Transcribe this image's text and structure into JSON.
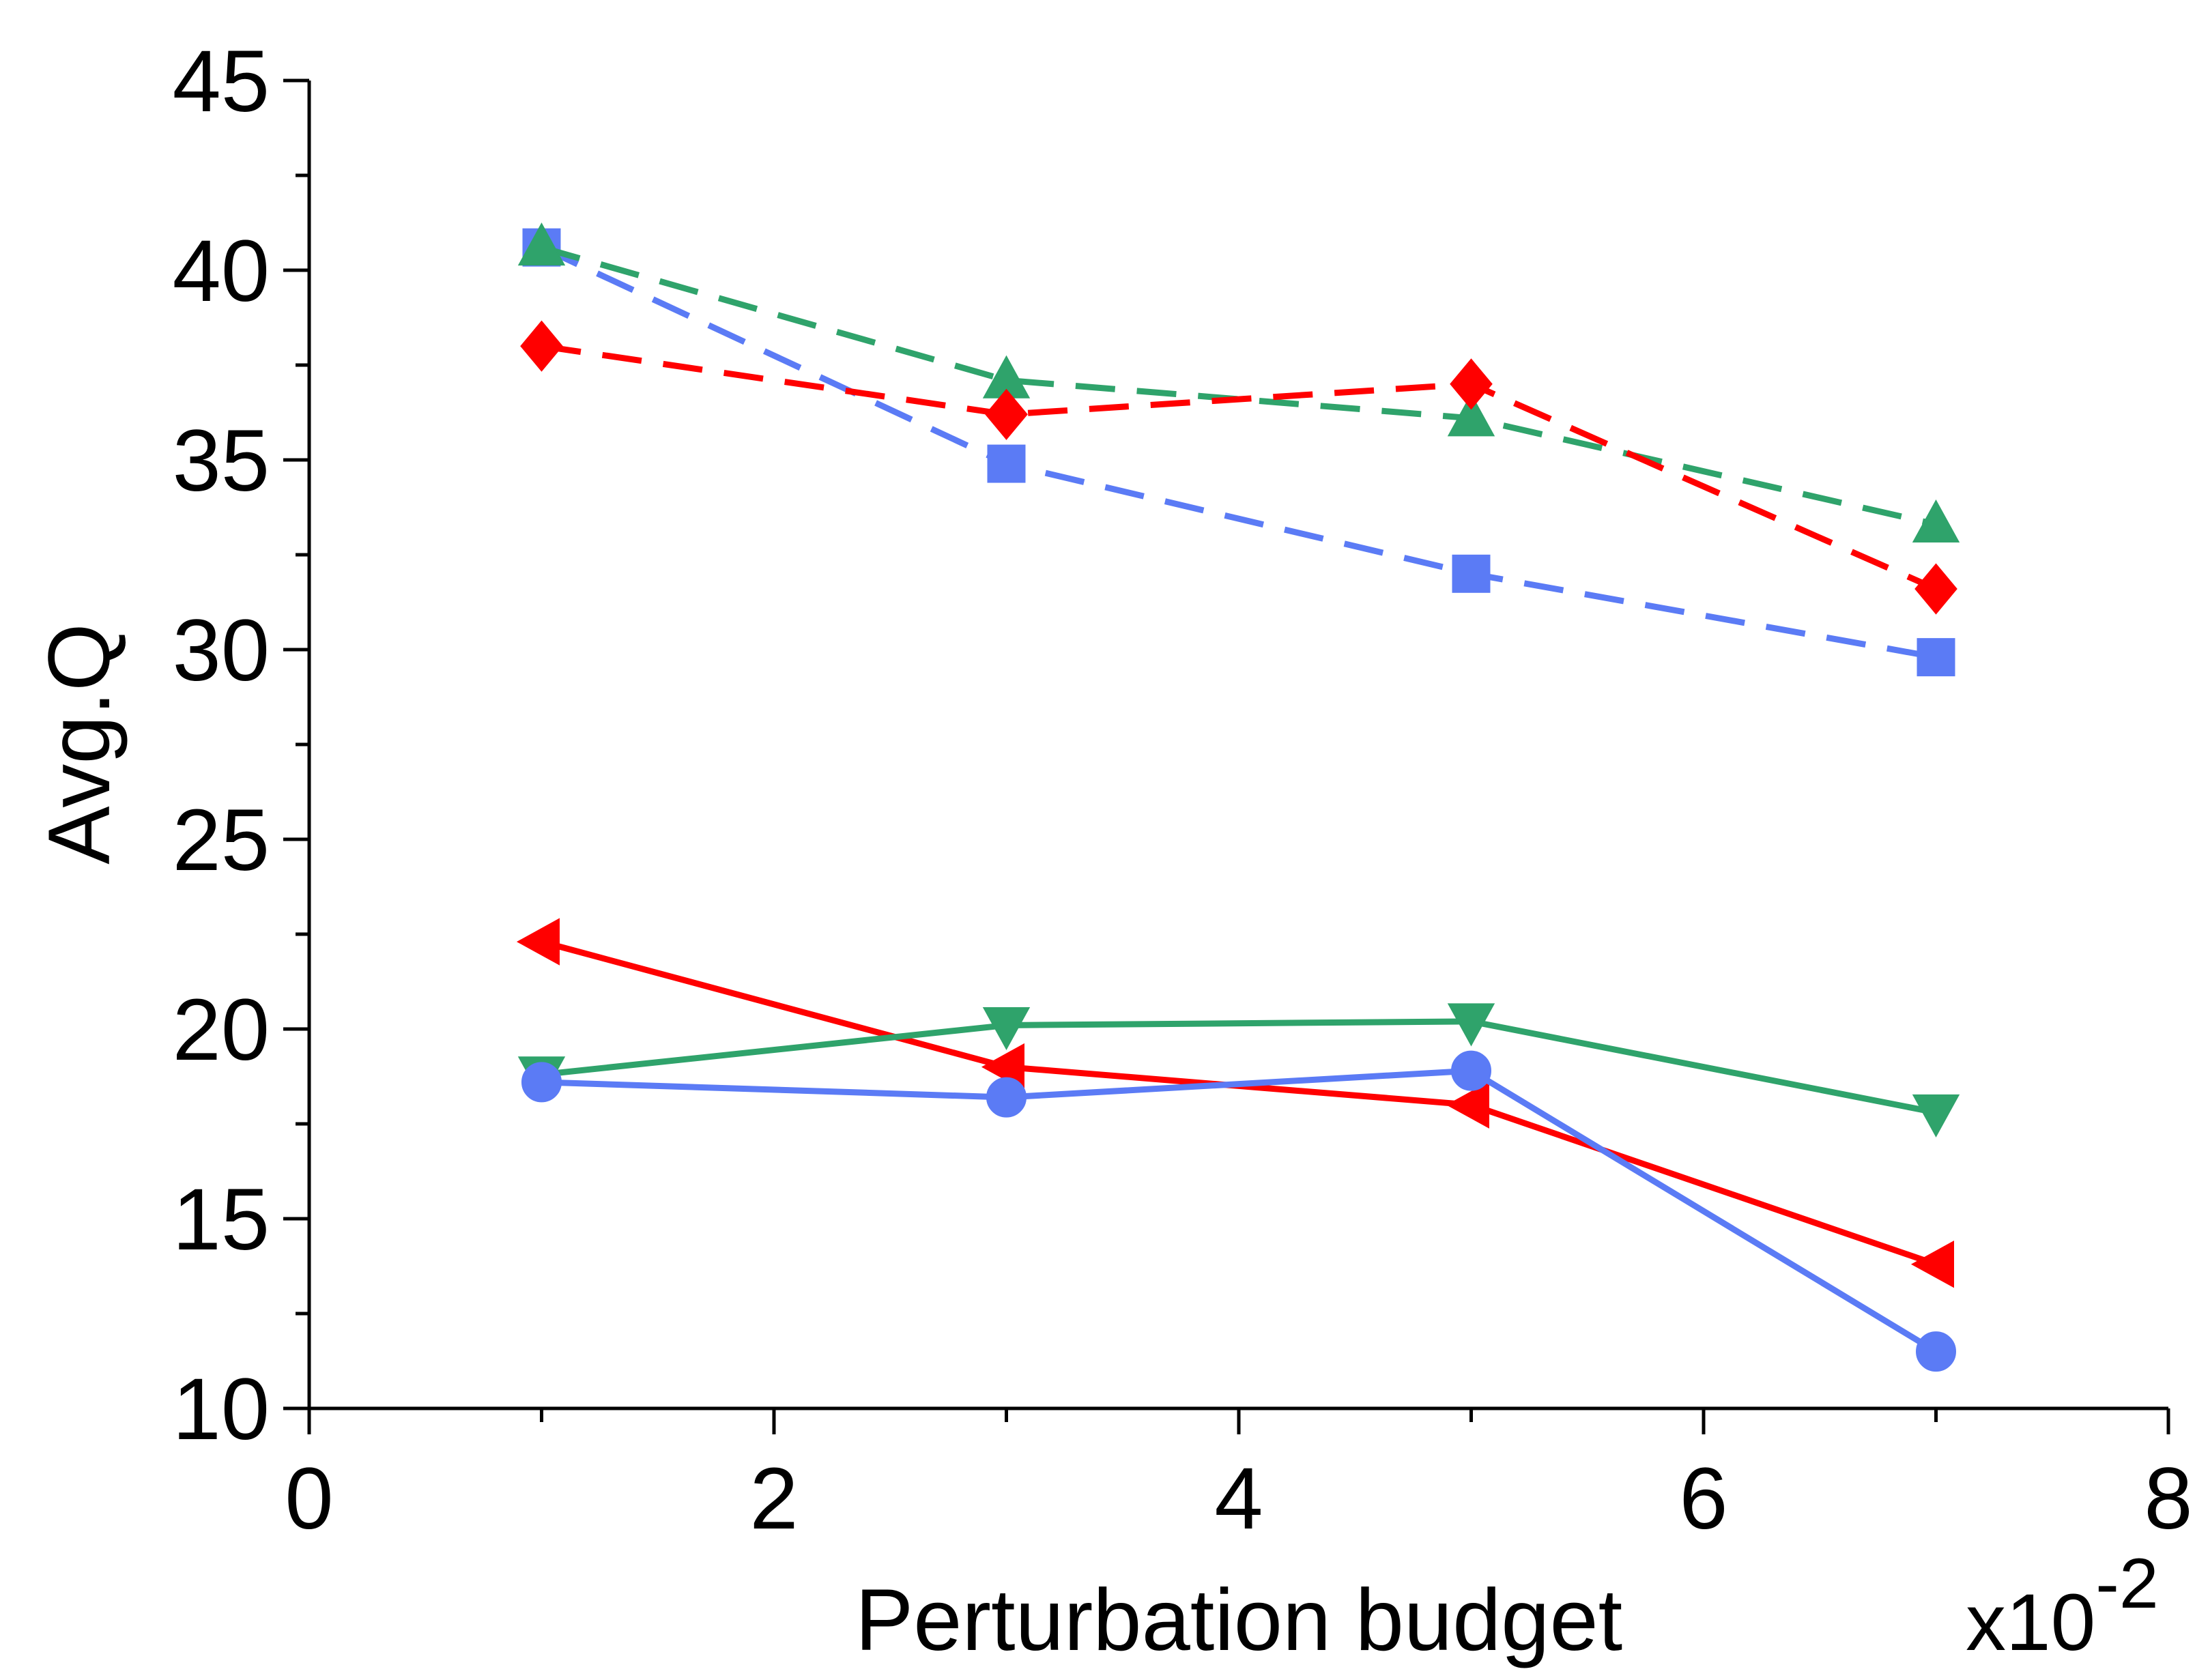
{
  "chart_data": {
    "type": "line",
    "title": "",
    "xlabel": "Perturbation budget",
    "ylabel": "Avg.Q",
    "x_multiplier": "x10",
    "x_multiplier_exp": "-2",
    "xlim": [
      0,
      8
    ],
    "ylim": [
      10,
      45
    ],
    "xticks": [
      0,
      2,
      4,
      6,
      8
    ],
    "yticks": [
      10,
      15,
      20,
      25,
      30,
      35,
      40,
      45
    ],
    "grid": false,
    "legend": "none",
    "series": [
      {
        "name": "blue-dashed-square",
        "color": "#5b7bf5",
        "line_style": "dashed",
        "marker": "square",
        "x": [
          1,
          3,
          5,
          7
        ],
        "values": [
          40.6,
          34.9,
          32.0,
          29.8
        ]
      },
      {
        "name": "green-dashed-triangle-up",
        "color": "#2fa36b",
        "line_style": "dashed",
        "marker": "triangle-up",
        "x": [
          1,
          3,
          5,
          7
        ],
        "values": [
          40.6,
          37.1,
          36.1,
          33.3
        ]
      },
      {
        "name": "red-dashed-diamond",
        "color": "#ff0000",
        "line_style": "dashed",
        "marker": "diamond",
        "x": [
          1,
          3,
          5,
          7
        ],
        "values": [
          38.0,
          36.2,
          37.0,
          31.6
        ]
      },
      {
        "name": "red-solid-triangle-left",
        "color": "#ff0000",
        "line_style": "solid",
        "marker": "triangle-left",
        "x": [
          1,
          3,
          5,
          7
        ],
        "values": [
          22.3,
          19.0,
          18.0,
          13.8
        ]
      },
      {
        "name": "green-solid-triangle-down",
        "color": "#2fa36b",
        "line_style": "solid",
        "marker": "triangle-down",
        "x": [
          1,
          3,
          5,
          7
        ],
        "values": [
          18.8,
          20.1,
          20.2,
          17.8
        ]
      },
      {
        "name": "blue-solid-circle",
        "color": "#5b7bf5",
        "line_style": "solid",
        "marker": "circle",
        "x": [
          1,
          3,
          5,
          7
        ],
        "values": [
          18.6,
          18.2,
          18.9,
          11.5
        ]
      }
    ]
  }
}
